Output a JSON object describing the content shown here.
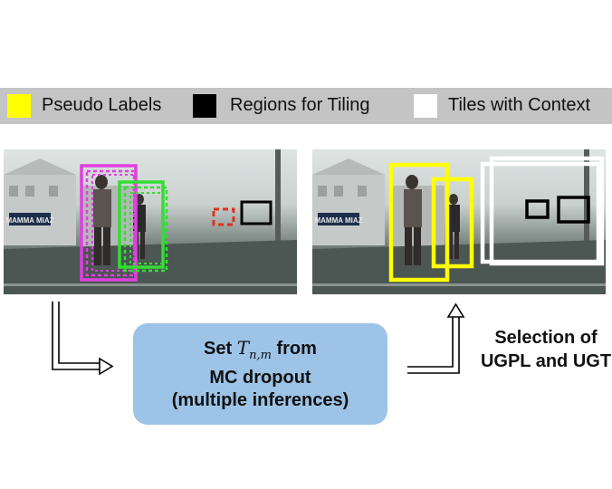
{
  "legend": {
    "items": [
      {
        "label": "Pseudo Labels",
        "color": "#ffff00"
      },
      {
        "label": "Regions for Tiling",
        "color": "#000000"
      },
      {
        "label": "Tiles with Context",
        "color": "#ffffff"
      }
    ]
  },
  "process": {
    "line1_prefix": "Set",
    "symbol": "T",
    "symbol_subscript": "n,m",
    "line1_suffix": "from",
    "line2": "MC dropout",
    "line3": "(multiple inferences)"
  },
  "selection": {
    "line1": "Selection of",
    "line2": "UGPL and UGT"
  },
  "sign": {
    "text": "MAMMA MIAZ"
  },
  "colors": {
    "legend_bg": "#c4c4c4",
    "process_bg": "#9dc3e6",
    "magenta_box": "#e040e0",
    "green_box": "#33dd33",
    "red_dashed": "#e03020",
    "yellow_box": "#ffff00"
  }
}
